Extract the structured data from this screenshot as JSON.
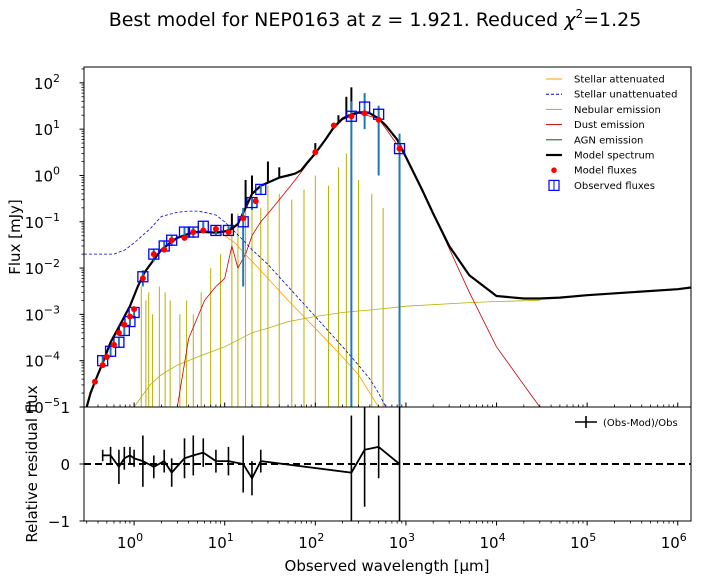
{
  "title": {
    "prefix": "Best model for NEP0163 at z = 1.921. Reduced ",
    "chi": "χ",
    "sup": "2",
    "suffix": "=1.25"
  },
  "chart_data": [
    {
      "type": "line",
      "panel": "main",
      "xscale": "log",
      "yscale": "log",
      "xlim": [
        0.28,
        1400000
      ],
      "ylim": [
        1e-05,
        220
      ],
      "ylabel": "Flux [mJy]",
      "xlabel": "",
      "xticks": [
        1,
        10,
        100,
        1000,
        10000,
        100000,
        1000000
      ],
      "xtick_labels": [
        {
          "base": "10",
          "exp": "0"
        },
        {
          "base": "10",
          "exp": "1"
        },
        {
          "base": "10",
          "exp": "2"
        },
        {
          "base": "10",
          "exp": "3"
        },
        {
          "base": "10",
          "exp": "4"
        },
        {
          "base": "10",
          "exp": "5"
        },
        {
          "base": "10",
          "exp": "6"
        }
      ],
      "yticks": [
        1e-05,
        0.0001,
        0.001,
        0.01,
        0.1,
        1,
        10,
        100
      ],
      "ytick_labels": [
        {
          "base": "10",
          "exp": "−5"
        },
        {
          "base": "10",
          "exp": "−4"
        },
        {
          "base": "10",
          "exp": "−3"
        },
        {
          "base": "10",
          "exp": "−2"
        },
        {
          "base": "10",
          "exp": "−1"
        },
        {
          "base": "10",
          "exp": "0"
        },
        {
          "base": "10",
          "exp": "1"
        },
        {
          "base": "10",
          "exp": "2"
        }
      ],
      "legend_position": "top-right",
      "legend": [
        {
          "label": "Stellar attenuated",
          "color": "#ff9900",
          "style": "solid"
        },
        {
          "label": "Stellar unattenuated",
          "color": "#0000cc",
          "style": "dashed"
        },
        {
          "label": "Nebular emission",
          "color": "#b8b000",
          "style": "solid"
        },
        {
          "label": "Dust emission",
          "color": "#cc0000",
          "style": "solid"
        },
        {
          "label": "AGN emission",
          "color": "#006400",
          "style": "solid"
        },
        {
          "label": "Model spectrum",
          "color": "#000000",
          "style": "solid-thick"
        },
        {
          "label": "Model fluxes",
          "color": "#ff0000",
          "style": "dot"
        },
        {
          "label": "Observed fluxes",
          "color": "#0000ff",
          "style": "open-square"
        }
      ],
      "series": [
        {
          "name": "Model spectrum",
          "color": "#000000",
          "x": [
            0.3,
            0.33,
            0.38,
            0.45,
            0.55,
            0.7,
            0.9,
            1.1,
            1.3,
            1.6,
            2.0,
            2.5,
            3.0,
            3.5,
            4.0,
            5.0,
            6.0,
            8.0,
            10,
            12,
            14,
            17,
            20,
            25,
            30,
            40,
            50,
            60,
            70,
            80,
            100,
            130,
            160,
            200,
            250,
            300,
            350,
            400,
            500,
            600,
            800,
            1000,
            1500,
            2000,
            3000,
            5000,
            10000,
            20000,
            30000,
            50000,
            100000,
            300000,
            1000000,
            1400000
          ],
          "y": [
            1e-05,
            2e-05,
            4e-05,
            9e-05,
            0.00025,
            0.0006,
            0.0015,
            0.004,
            0.008,
            0.014,
            0.025,
            0.035,
            0.045,
            0.05,
            0.055,
            0.06,
            0.06,
            0.058,
            0.062,
            0.07,
            0.09,
            0.2,
            0.4,
            0.6,
            0.7,
            0.9,
            1.0,
            1.1,
            1.3,
            1.8,
            3.0,
            6.0,
            11,
            17,
            21,
            23,
            23,
            22,
            17,
            12,
            6.0,
            2.5,
            0.5,
            0.15,
            0.03,
            0.007,
            0.0025,
            0.0022,
            0.0022,
            0.0023,
            0.0026,
            0.003,
            0.0035,
            0.0038
          ]
        },
        {
          "name": "Stellar unattenuated",
          "color": "#0000cc",
          "x": [
            0.28,
            0.4,
            0.6,
            0.8,
            1.0,
            1.5,
            2.0,
            3.0,
            4.0,
            5.0,
            6.0,
            8.0,
            10,
            13,
            16,
            20,
            30,
            50,
            100,
            200,
            300,
            400,
            500,
            600
          ],
          "y": [
            0.02,
            0.02,
            0.02,
            0.025,
            0.035,
            0.07,
            0.13,
            0.16,
            0.17,
            0.17,
            0.16,
            0.14,
            0.1,
            0.06,
            0.04,
            0.025,
            0.012,
            0.004,
            0.0009,
            0.0002,
            8e-05,
            4e-05,
            2e-05,
            1e-05
          ]
        },
        {
          "name": "Stellar attenuated",
          "color": "#ff9900",
          "x": [
            0.3,
            0.38,
            0.45,
            0.55,
            0.7,
            0.9,
            1.1,
            1.3,
            1.6,
            2.0,
            2.5,
            3.0,
            4.0,
            5.0,
            6.0,
            8.0,
            10,
            13,
            16,
            20,
            30,
            50,
            100,
            200,
            300,
            400,
            500,
            600
          ],
          "y": [
            1e-05,
            4e-05,
            9e-05,
            0.00025,
            0.0006,
            0.0015,
            0.004,
            0.008,
            0.014,
            0.025,
            0.035,
            0.045,
            0.055,
            0.06,
            0.06,
            0.058,
            0.05,
            0.035,
            0.022,
            0.014,
            0.006,
            0.002,
            0.0005,
            0.00012,
            5e-05,
            2e-05,
            1e-05,
            5e-06
          ]
        },
        {
          "name": "Nebular emission",
          "color": "#b8b000",
          "x": [
            1.0,
            1.5,
            2.0,
            3.0,
            5.0,
            10,
            20,
            30,
            50,
            100,
            200,
            500,
            1000,
            5000,
            10000,
            30000
          ],
          "y": [
            1e-05,
            3e-05,
            5e-05,
            8e-05,
            0.00012,
            0.0002,
            0.0004,
            0.0005,
            0.0007,
            0.0009,
            0.0011,
            0.0013,
            0.0015,
            0.0018,
            0.0019,
            0.002
          ]
        },
        {
          "name": "Dust emission",
          "color": "#cc0000",
          "x": [
            3.0,
            4.0,
            6.0,
            8.0,
            10,
            12,
            14,
            17,
            20,
            25,
            30,
            40,
            60,
            100,
            150,
            200,
            300,
            500,
            1000,
            2000,
            5000,
            10000,
            20000,
            30000
          ],
          "y": [
            1e-05,
            0.0003,
            0.002,
            0.004,
            0.006,
            0.03,
            0.01,
            0.02,
            0.05,
            0.1,
            0.15,
            0.3,
            0.8,
            3.0,
            9.0,
            16,
            22,
            17,
            2.5,
            0.15,
            0.003,
            0.0002,
            3e-05,
            1e-05
          ]
        }
      ],
      "emission_lines_nebular": [
        {
          "x": 1.2,
          "ypeak": 0.004
        },
        {
          "x": 1.35,
          "ypeak": 0.002
        },
        {
          "x": 1.45,
          "ypeak": 0.003
        },
        {
          "x": 1.6,
          "ypeak": 0.001
        },
        {
          "x": 1.9,
          "ypeak": 0.004
        },
        {
          "x": 2.2,
          "ypeak": 0.003
        },
        {
          "x": 2.5,
          "ypeak": 0.002
        },
        {
          "x": 3.2,
          "ypeak": 0.001
        },
        {
          "x": 3.8,
          "ypeak": 0.002
        },
        {
          "x": 4.5,
          "ypeak": 0.001
        },
        {
          "x": 5.5,
          "ypeak": 0.003
        },
        {
          "x": 7.0,
          "ypeak": 0.01
        },
        {
          "x": 9.0,
          "ypeak": 0.02
        },
        {
          "x": 12,
          "ypeak": 0.1
        },
        {
          "x": 14,
          "ypeak": 0.15
        },
        {
          "x": 17,
          "ypeak": 0.3
        },
        {
          "x": 20,
          "ypeak": 0.5
        },
        {
          "x": 25,
          "ypeak": 0.2
        },
        {
          "x": 30,
          "ypeak": 0.6
        },
        {
          "x": 40,
          "ypeak": 0.4
        },
        {
          "x": 55,
          "ypeak": 0.3
        },
        {
          "x": 75,
          "ypeak": 0.5
        },
        {
          "x": 100,
          "ypeak": 1.0
        },
        {
          "x": 140,
          "ypeak": 0.6
        },
        {
          "x": 180,
          "ypeak": 1.5
        },
        {
          "x": 220,
          "ypeak": 3.0
        },
        {
          "x": 300,
          "ypeak": 0.8
        },
        {
          "x": 420,
          "ypeak": 0.4
        },
        {
          "x": 560,
          "ypeak": 0.2
        }
      ],
      "emission_lines_model": [
        {
          "x": 12,
          "ypeak": 0.15
        },
        {
          "x": 17,
          "ypeak": 0.8
        },
        {
          "x": 20,
          "ypeak": 1.0
        },
        {
          "x": 30,
          "ypeak": 2.0
        },
        {
          "x": 40,
          "ypeak": 1.5
        },
        {
          "x": 100,
          "ypeak": 5.0
        },
        {
          "x": 180,
          "ypeak": 20
        },
        {
          "x": 220,
          "ypeak": 50
        },
        {
          "x": 250,
          "ypeak": 80
        }
      ],
      "model_fluxes": {
        "x": [
          0.37,
          0.45,
          0.5,
          0.6,
          0.68,
          0.78,
          0.9,
          1.0,
          1.25,
          1.65,
          2.15,
          2.6,
          3.6,
          4.5,
          5.8,
          8.0,
          11,
          16,
          22,
          100,
          160,
          250,
          350,
          500,
          850
        ],
        "y": [
          3.5e-05,
          8e-05,
          0.00012,
          0.00022,
          0.0004,
          0.0006,
          0.0009,
          0.0013,
          0.006,
          0.02,
          0.025,
          0.04,
          0.045,
          0.06,
          0.065,
          0.07,
          0.06,
          0.12,
          0.28,
          3.2,
          12,
          19,
          22,
          16,
          3.8
        ]
      },
      "observed_fluxes": {
        "x": [
          0.45,
          0.55,
          0.68,
          0.78,
          0.9,
          1.0,
          1.25,
          1.65,
          2.15,
          2.6,
          3.6,
          4.5,
          5.8,
          8.0,
          11,
          16,
          20,
          25,
          250,
          350,
          500,
          850
        ],
        "y": [
          0.0001,
          0.00016,
          0.00025,
          0.00045,
          0.0007,
          0.0011,
          0.0065,
          0.02,
          0.03,
          0.04,
          0.06,
          0.06,
          0.08,
          0.065,
          0.065,
          0.1,
          0.26,
          0.5,
          19,
          30,
          21,
          3.8
        ],
        "yerr_low": [
          7e-05,
          0.00012,
          0.00019,
          0.00034,
          0.00055,
          0.0008,
          0.004,
          0.014,
          0.022,
          0.03,
          0.045,
          0.045,
          0.06,
          0.05,
          0.05,
          0.004,
          0.18,
          0.38,
          1e-05,
          10,
          1.0,
          1e-05
        ],
        "yerr_high": [
          0.00013,
          0.0002,
          0.00031,
          0.00056,
          0.00085,
          0.0014,
          0.009,
          0.026,
          0.038,
          0.05,
          0.075,
          0.075,
          0.1,
          0.08,
          0.08,
          0.2,
          0.34,
          0.62,
          40,
          60,
          32,
          8
        ]
      }
    },
    {
      "type": "line",
      "panel": "residual",
      "xscale": "log",
      "xlim": [
        0.28,
        1400000
      ],
      "ylim": [
        -1,
        1
      ],
      "xlabel": "Observed wavelength [μm]",
      "ylabel": "Relative residual flux",
      "yticks": [
        -1,
        0,
        1
      ],
      "ytick_labels": [
        "−1",
        "0",
        "1"
      ],
      "legend_position": "top-right",
      "legend": [
        {
          "label": "(Obs-Mod)/Obs",
          "color": "#000000",
          "style": "errorbar"
        }
      ],
      "zero_line": "dashed",
      "series": [
        {
          "name": "(Obs-Mod)/Obs",
          "x": [
            0.45,
            0.55,
            0.68,
            0.78,
            0.9,
            1.0,
            1.25,
            1.65,
            2.15,
            2.6,
            3.6,
            4.5,
            5.8,
            8.0,
            11,
            16,
            20,
            25,
            250,
            350,
            500,
            850
          ],
          "y": [
            0.15,
            0.15,
            -0.05,
            0.1,
            0.15,
            0.1,
            0.05,
            -0.05,
            0.05,
            -0.15,
            0.1,
            0.15,
            0.2,
            0.05,
            0.05,
            0.0,
            -0.25,
            0.05,
            -0.15,
            0.25,
            0.3,
            0.0
          ],
          "yerr": [
            0.1,
            0.15,
            0.3,
            0.2,
            0.15,
            0.15,
            0.45,
            0.2,
            0.2,
            0.25,
            0.35,
            0.35,
            0.25,
            0.2,
            0.25,
            0.5,
            0.3,
            0.2,
            1.0,
            1.0,
            0.55,
            1.0
          ]
        }
      ]
    }
  ]
}
